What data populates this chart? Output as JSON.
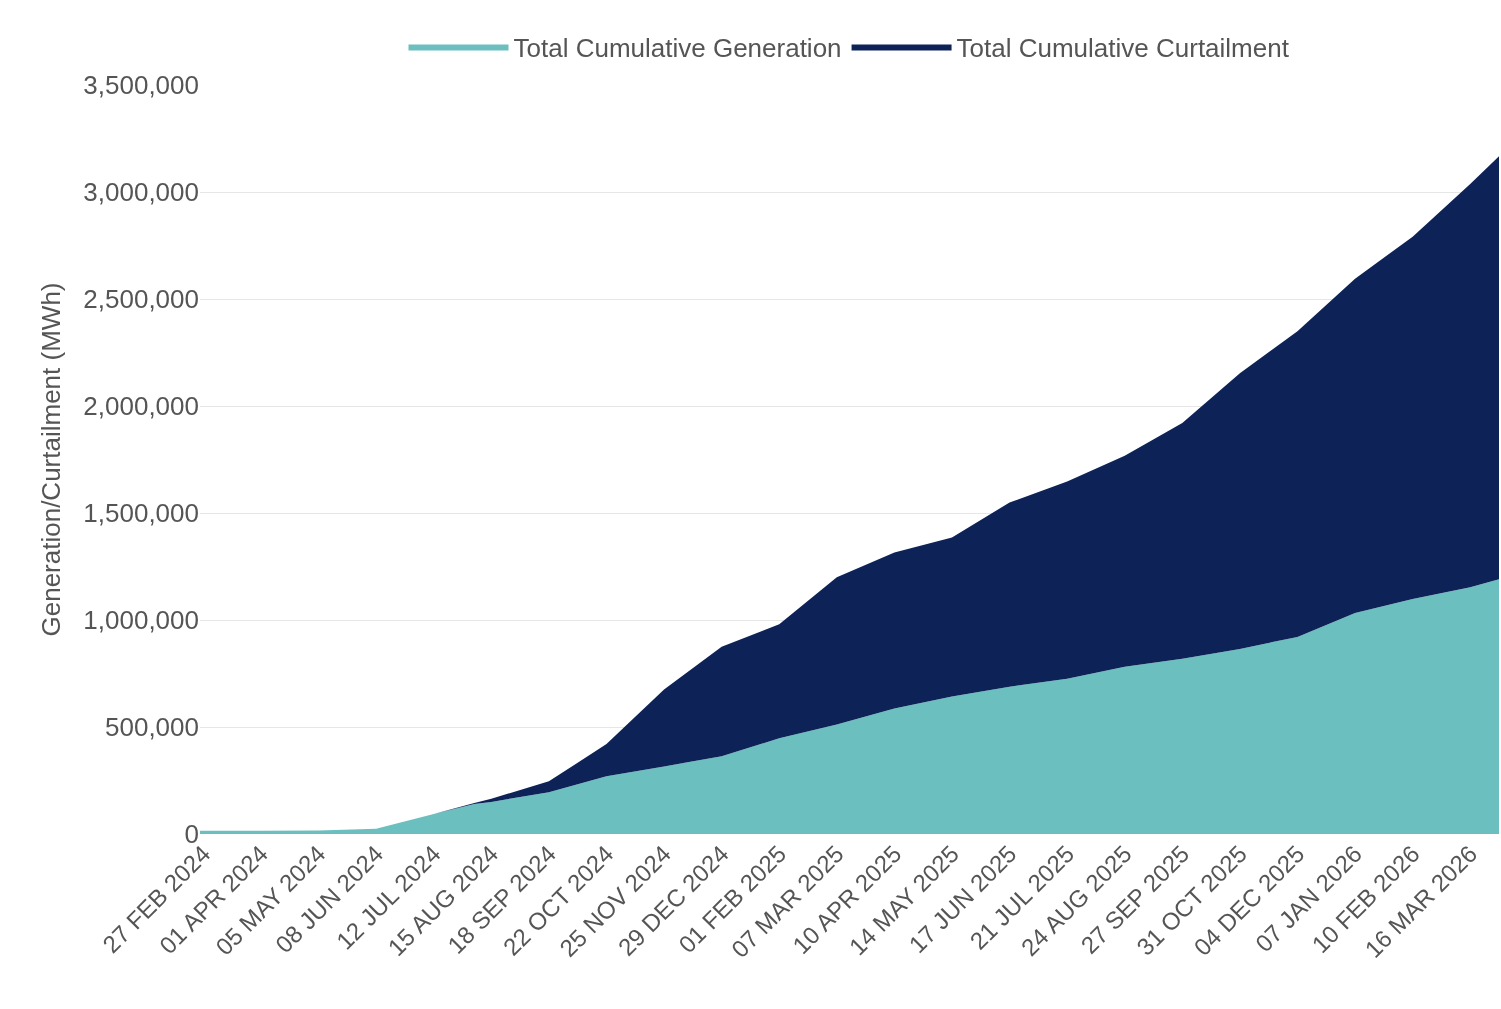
{
  "chart_data": {
    "type": "area",
    "stacked": true,
    "ylabel": "Generation/Curtailment (MWh)",
    "x": [
      "2024-02-25",
      "2024-02-27",
      "2024-04-01",
      "2024-05-05",
      "2024-06-08",
      "2024-07-12",
      "2024-08-05",
      "2024-08-15",
      "2024-09-18",
      "2024-10-22",
      "2024-11-25",
      "2024-12-29",
      "2025-02-01",
      "2025-03-07",
      "2025-04-10",
      "2025-05-14",
      "2025-06-17",
      "2025-07-21",
      "2025-08-24",
      "2025-09-27",
      "2025-10-31",
      "2025-12-04",
      "2026-01-07",
      "2026-02-10",
      "2026-03-16",
      "2026-04-02"
    ],
    "series": [
      {
        "name": "Total Cumulative Generation",
        "color": "#6cbfbf",
        "values": [
          15000,
          15000,
          15000,
          16000,
          25000,
          93000,
          140000,
          150000,
          195000,
          270000,
          316000,
          363000,
          447000,
          512000,
          586000,
          642000,
          688000,
          726000,
          781000,
          819000,
          865000,
          921000,
          1033000,
          1098000,
          1153000,
          1191000
        ]
      },
      {
        "name": "Total Cumulative Curtailment",
        "color": "#0d2357",
        "values": [
          0,
          0,
          0,
          0,
          0,
          0,
          5000,
          15000,
          51000,
          150000,
          359000,
          512000,
          533000,
          688000,
          730000,
          744000,
          861000,
          921000,
          986000,
          1102000,
          1288000,
          1428000,
          1562000,
          1693000,
          1884000,
          1976000
        ]
      }
    ],
    "xlim": [
      "2024-02-25",
      "2026-04-02"
    ],
    "xticks": [
      {
        "value": "2024-02-27",
        "label": "27 FEB 2024"
      },
      {
        "value": "2024-04-01",
        "label": "01 APR 2024"
      },
      {
        "value": "2024-05-05",
        "label": "05 MAY 2024"
      },
      {
        "value": "2024-06-08",
        "label": "08 JUN 2024"
      },
      {
        "value": "2024-07-12",
        "label": "12 JUL 2024"
      },
      {
        "value": "2024-08-15",
        "label": "15 AUG 2024"
      },
      {
        "value": "2024-09-18",
        "label": "18 SEP 2024"
      },
      {
        "value": "2024-10-22",
        "label": "22 OCT 2024"
      },
      {
        "value": "2024-11-25",
        "label": "25 NOV 2024"
      },
      {
        "value": "2024-12-29",
        "label": "29 DEC 2024"
      },
      {
        "value": "2025-02-01",
        "label": "01 FEB 2025"
      },
      {
        "value": "2025-03-07",
        "label": "07 MAR 2025"
      },
      {
        "value": "2025-04-10",
        "label": "10 APR 2025"
      },
      {
        "value": "2025-05-14",
        "label": "14 MAY 2025"
      },
      {
        "value": "2025-06-17",
        "label": "17 JUN 2025"
      },
      {
        "value": "2025-07-21",
        "label": "21 JUL 2025"
      },
      {
        "value": "2025-08-24",
        "label": "24 AUG 2025"
      },
      {
        "value": "2025-09-27",
        "label": "27 SEP 2025"
      },
      {
        "value": "2025-10-31",
        "label": "31 OCT 2025"
      },
      {
        "value": "2025-12-04",
        "label": "04 DEC 2025"
      },
      {
        "value": "2026-01-07",
        "label": "07 JAN 2026"
      },
      {
        "value": "2026-02-10",
        "label": "10 FEB 2026"
      },
      {
        "value": "2026-03-16",
        "label": "16 MAR 2026"
      }
    ],
    "ylim": [
      0,
      3500000
    ],
    "yticks": [
      {
        "value": 0,
        "label": "0"
      },
      {
        "value": 500000,
        "label": "500,000"
      },
      {
        "value": 1000000,
        "label": "1,000,000"
      },
      {
        "value": 1500000,
        "label": "1,500,000"
      },
      {
        "value": 2000000,
        "label": "2,000,000"
      },
      {
        "value": 2500000,
        "label": "2,500,000"
      },
      {
        "value": 3000000,
        "label": "3,000,000"
      },
      {
        "value": 3500000,
        "label": "3,500,000"
      }
    ],
    "grid": "y",
    "legend": "top"
  }
}
